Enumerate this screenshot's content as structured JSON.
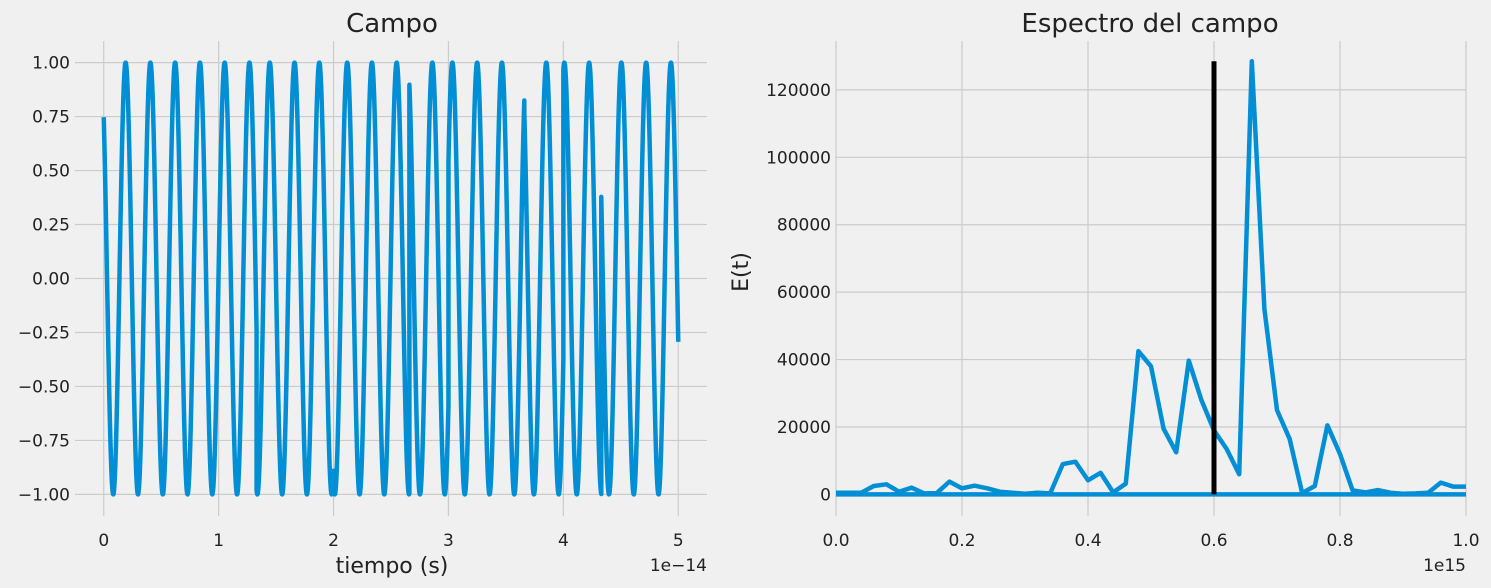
{
  "chart_data": [
    {
      "type": "line",
      "title": "Campo",
      "xlabel": "tiempo (s)",
      "ylabel": "",
      "x_offset_label": "1e−14",
      "xlim": [
        -0.25,
        5.25
      ],
      "ylim": [
        -1.1,
        1.1
      ],
      "xticks": [
        0,
        1,
        2,
        3,
        4,
        5
      ],
      "xtick_labels": [
        "0",
        "1",
        "2",
        "3",
        "4",
        "5"
      ],
      "yticks": [
        -1.0,
        -0.75,
        -0.5,
        -0.25,
        0.0,
        0.25,
        0.5,
        0.75,
        1.0
      ],
      "ytick_labels": [
        "−1.00",
        "−0.75",
        "−0.50",
        "−0.25",
        "0.00",
        "0.25",
        "0.50",
        "0.75",
        "1.00"
      ],
      "grid": true,
      "series": [
        {
          "color": "#008fd5",
          "segments": [
            {
              "t_start": 0.0,
              "t_end": 1.33,
              "period": 0.2155,
              "phase": 0.727
            },
            {
              "t_start": 1.33,
              "t_end": 2.0,
              "period": 0.2155,
              "phase": 1.85
            },
            {
              "t_start": 2.0,
              "t_end": 2.3,
              "period": 0.2155,
              "phase": 1.05
            },
            {
              "t_start": 2.3,
              "t_end": 2.66,
              "period": 0.2155,
              "phase": 1.07
            },
            {
              "t_start": 2.66,
              "t_end": 3.0,
              "period": 0.2155,
              "phase": -1.7
            },
            {
              "t_start": 3.0,
              "t_end": 3.66,
              "period": 0.2155,
              "phase": -0.5
            },
            {
              "t_start": 3.66,
              "t_end": 4.0,
              "period": 0.2155,
              "phase": 0.8
            },
            {
              "t_start": 4.0,
              "t_end": 4.33,
              "period": 0.2155,
              "phase": 2.5
            },
            {
              "t_start": 4.33,
              "t_end": 5.0,
              "period": 0.2155,
              "phase": 0.6
            }
          ]
        }
      ]
    },
    {
      "type": "line",
      "title": "Espectro del campo",
      "xlabel": "",
      "ylabel": "E(t)",
      "x_offset_label": "1e15",
      "xlim": [
        0.0,
        1.0
      ],
      "ylim": [
        -6400,
        134500
      ],
      "xticks": [
        0.0,
        0.2,
        0.4,
        0.6,
        0.8,
        1.0
      ],
      "xtick_labels": [
        "0.0",
        "0.2",
        "0.4",
        "0.6",
        "0.8",
        "1.0"
      ],
      "yticks": [
        0,
        20000,
        40000,
        60000,
        80000,
        100000,
        120000
      ],
      "ytick_labels": [
        "0",
        "20000",
        "40000",
        "60000",
        "80000",
        "100000",
        "120000"
      ],
      "grid": true,
      "series": [
        {
          "color": "#008fd5",
          "x": [
            0.0,
            0.02,
            0.04,
            0.06,
            0.08,
            0.1,
            0.12,
            0.14,
            0.16,
            0.18,
            0.2,
            0.22,
            0.24,
            0.26,
            0.28,
            0.3,
            0.32,
            0.34,
            0.36,
            0.38,
            0.4,
            0.42,
            0.44,
            0.46,
            0.48,
            0.5,
            0.52,
            0.54,
            0.56,
            0.58,
            0.6,
            0.62,
            0.64,
            0.66,
            0.68,
            0.7,
            0.72,
            0.74,
            0.76,
            0.78,
            0.8,
            0.82,
            0.84,
            0.86,
            0.88,
            0.9,
            0.92,
            0.94,
            0.96,
            0.98,
            1.0
          ],
          "values": [
            500,
            500,
            500,
            2500,
            3000,
            800,
            2000,
            300,
            400,
            3800,
            1800,
            2600,
            1800,
            800,
            500,
            200,
            500,
            300,
            9000,
            9700,
            4200,
            6400,
            600,
            3200,
            42500,
            38000,
            19500,
            12500,
            39700,
            28000,
            19000,
            13500,
            6000,
            128500,
            55000,
            25000,
            16500,
            400,
            2500,
            20500,
            12000,
            1200,
            600,
            1300,
            500,
            200,
            300,
            500,
            3500,
            2300,
            2300
          ]
        },
        {
          "color": "#008fd5",
          "x": [
            0.0,
            1.0
          ],
          "values": [
            0,
            0
          ]
        }
      ],
      "vline": {
        "x": 0.6,
        "ymin": 0,
        "ymax": 128500,
        "color": "#000000"
      }
    }
  ]
}
